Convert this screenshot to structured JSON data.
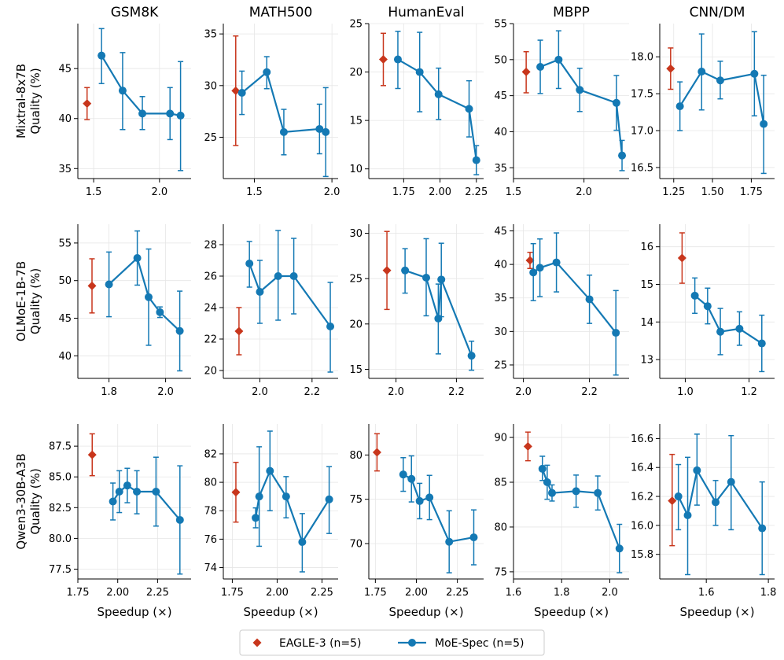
{
  "colors": {
    "eagle": "#c8361c",
    "moe": "#1479b4",
    "grid": "#e6e6e6",
    "axis": "#000000"
  },
  "row_labels": [
    "Mixtral-8x7B\nQuality (%)",
    "OLMoE-1B-7B\nQuality (%)",
    "Qwen3-30B-A3B\nQuality (%)"
  ],
  "col_titles": [
    "GSM8K",
    "MATH500",
    "HumanEval",
    "MBPP",
    "CNN/DM"
  ],
  "xlabel": "Speedup (×)",
  "legend": {
    "eagle_label": "EAGLE-3 (n=5)",
    "moe_label": "MoE-Spec (n=5)"
  },
  "chart_data": [
    {
      "type": "line",
      "model": "Mixtral-8x7B",
      "dataset": "GSM8K",
      "xlim": [
        1.38,
        2.24
      ],
      "ylim": [
        34,
        49.5
      ],
      "xticks": [
        1.5,
        2.0
      ],
      "xtick_labels": [
        "1.5",
        "2.0"
      ],
      "yticks": [
        35,
        40,
        45
      ],
      "ytick_labels": [
        "35",
        "40",
        "45"
      ],
      "eagle": {
        "x": 1.45,
        "y": 41.5,
        "lo": 39.9,
        "hi": 43.1
      },
      "moe": {
        "x": [
          1.56,
          1.72,
          1.87,
          2.08,
          2.16
        ],
        "y": [
          46.3,
          42.8,
          40.5,
          40.5,
          40.3
        ],
        "lo": [
          43.5,
          38.9,
          38.9,
          37.9,
          34.8
        ],
        "hi": [
          49.0,
          46.6,
          42.2,
          43.1,
          45.7
        ]
      }
    },
    {
      "type": "line",
      "model": "Mixtral-8x7B",
      "dataset": "MATH500",
      "xlim": [
        1.3,
        2.04
      ],
      "ylim": [
        21,
        36
      ],
      "xticks": [
        1.5,
        2.0
      ],
      "xtick_labels": [
        "1.5",
        "2.0"
      ],
      "yticks": [
        25,
        30,
        35
      ],
      "ytick_labels": [
        "25",
        "30",
        "35"
      ],
      "eagle": {
        "x": 1.38,
        "y": 29.5,
        "lo": 24.2,
        "hi": 34.8
      },
      "moe": {
        "x": [
          1.42,
          1.58,
          1.69,
          1.92,
          1.96
        ],
        "y": [
          29.3,
          31.3,
          25.5,
          25.8,
          25.5
        ],
        "lo": [
          27.2,
          29.7,
          23.3,
          23.4,
          21.2
        ],
        "hi": [
          31.4,
          32.8,
          27.7,
          28.2,
          29.8
        ]
      }
    },
    {
      "type": "line",
      "model": "Mixtral-8x7B",
      "dataset": "HumanEval",
      "xlim": [
        1.51,
        2.3
      ],
      "ylim": [
        9,
        25
      ],
      "xticks": [
        1.75,
        2.0,
        2.25
      ],
      "xtick_labels": [
        "1.75",
        "2.00",
        "2.25"
      ],
      "yticks": [
        10,
        15,
        20,
        25
      ],
      "ytick_labels": [
        "10",
        "15",
        "20",
        "25"
      ],
      "eagle": {
        "x": 1.61,
        "y": 21.3,
        "lo": 18.6,
        "hi": 24.0
      },
      "moe": {
        "x": [
          1.71,
          1.86,
          1.99,
          2.2,
          2.25
        ],
        "y": [
          21.3,
          20.0,
          17.7,
          16.2,
          10.9
        ],
        "lo": [
          18.3,
          15.9,
          15.1,
          13.3,
          9.4
        ],
        "hi": [
          24.2,
          24.1,
          20.4,
          19.1,
          12.4
        ]
      }
    },
    {
      "type": "line",
      "model": "Mixtral-8x7B",
      "dataset": "MBPP",
      "xlim": [
        1.5,
        2.32
      ],
      "ylim": [
        33.5,
        55
      ],
      "xticks": [
        1.5,
        2.0
      ],
      "xtick_labels": [
        "1.5",
        "2.0"
      ],
      "yticks": [
        35,
        40,
        45,
        50,
        55
      ],
      "ytick_labels": [
        "35",
        "40",
        "45",
        "50",
        "55"
      ],
      "eagle": {
        "x": 1.59,
        "y": 48.3,
        "lo": 45.4,
        "hi": 51.1
      },
      "moe": {
        "x": [
          1.69,
          1.82,
          1.97,
          2.23,
          2.27
        ],
        "y": [
          49.0,
          50.0,
          45.8,
          44.0,
          36.7
        ],
        "lo": [
          45.3,
          46.0,
          42.8,
          40.2,
          34.6
        ],
        "hi": [
          52.7,
          54.0,
          48.8,
          47.8,
          38.8
        ]
      }
    },
    {
      "type": "line",
      "model": "Mixtral-8x7B",
      "dataset": "CNN/DM",
      "xlim": [
        1.16,
        1.9
      ],
      "ylim": [
        16.35,
        18.45
      ],
      "xticks": [
        1.25,
        1.5,
        1.75
      ],
      "xtick_labels": [
        "1.25",
        "1.50",
        "1.75"
      ],
      "yticks": [
        16.5,
        17.0,
        17.5,
        18.0
      ],
      "ytick_labels": [
        "16.5",
        "17.0",
        "17.5",
        "18.0"
      ],
      "eagle": {
        "x": 1.23,
        "y": 17.84,
        "lo": 17.56,
        "hi": 18.12
      },
      "moe": {
        "x": [
          1.29,
          1.43,
          1.55,
          1.77,
          1.83
        ],
        "y": [
          17.33,
          17.8,
          17.68,
          17.77,
          17.09
        ],
        "lo": [
          17.0,
          17.28,
          17.43,
          17.2,
          16.42
        ],
        "hi": [
          17.66,
          18.31,
          17.94,
          18.34,
          17.75
        ]
      }
    },
    {
      "type": "line",
      "model": "OLMoE-1B-7B",
      "dataset": "GSM8K",
      "xlim": [
        1.69,
        2.09
      ],
      "ylim": [
        37,
        57.5
      ],
      "xticks": [
        1.8,
        2.0
      ],
      "xtick_labels": [
        "1.8",
        "2.0"
      ],
      "yticks": [
        40,
        45,
        50,
        55
      ],
      "ytick_labels": [
        "40",
        "45",
        "50",
        "55"
      ],
      "eagle": {
        "x": 1.74,
        "y": 49.3,
        "lo": 45.7,
        "hi": 52.9
      },
      "moe": {
        "x": [
          1.8,
          1.9,
          1.94,
          1.98,
          2.05
        ],
        "y": [
          49.5,
          53.0,
          47.8,
          45.8,
          43.3
        ],
        "lo": [
          45.2,
          49.4,
          41.4,
          45.1,
          38.0
        ],
        "hi": [
          53.8,
          56.6,
          54.2,
          46.5,
          48.6
        ]
      }
    },
    {
      "type": "line",
      "model": "OLMoE-1B-7B",
      "dataset": "MATH500",
      "xlim": [
        1.86,
        2.3
      ],
      "ylim": [
        19.5,
        29.3
      ],
      "xticks": [
        2.0,
        2.2
      ],
      "xtick_labels": [
        "2.0",
        "2.2"
      ],
      "yticks": [
        20,
        22,
        24,
        26,
        28
      ],
      "ytick_labels": [
        "20",
        "22",
        "24",
        "26",
        "28"
      ],
      "eagle": {
        "x": 1.92,
        "y": 22.5,
        "lo": 21.0,
        "hi": 24.0
      },
      "moe": {
        "x": [
          1.96,
          2.0,
          2.07,
          2.13,
          2.27
        ],
        "y": [
          26.8,
          25.0,
          26.0,
          26.0,
          22.8
        ],
        "lo": [
          25.3,
          23.0,
          23.2,
          23.6,
          19.9
        ],
        "hi": [
          28.2,
          27.0,
          28.9,
          28.4,
          25.6
        ]
      }
    },
    {
      "type": "line",
      "model": "OLMoE-1B-7B",
      "dataset": "HumanEval",
      "xlim": [
        1.91,
        2.29
      ],
      "ylim": [
        14,
        31
      ],
      "xticks": [
        2.0,
        2.2
      ],
      "xtick_labels": [
        "2.0",
        "2.2"
      ],
      "yticks": [
        15,
        20,
        25,
        30
      ],
      "ytick_labels": [
        "15",
        "20",
        "25",
        "30"
      ],
      "eagle": {
        "x": 1.97,
        "y": 25.9,
        "lo": 21.6,
        "hi": 30.2
      },
      "moe": {
        "x": [
          2.03,
          2.1,
          2.14,
          2.15,
          2.25
        ],
        "y": [
          25.9,
          25.1,
          20.6,
          24.9,
          16.5
        ],
        "lo": [
          23.4,
          20.9,
          16.7,
          20.8,
          14.9
        ],
        "hi": [
          28.3,
          29.4,
          24.4,
          28.9,
          18.1
        ]
      }
    },
    {
      "type": "line",
      "model": "OLMoE-1B-7B",
      "dataset": "MBPP",
      "xlim": [
        1.97,
        2.32
      ],
      "ylim": [
        23,
        46
      ],
      "xticks": [
        2.0,
        2.2
      ],
      "xtick_labels": [
        "2.0",
        "2.2"
      ],
      "yticks": [
        25,
        30,
        35,
        40,
        45
      ],
      "ytick_labels": [
        "25",
        "30",
        "35",
        "40",
        "45"
      ],
      "eagle": {
        "x": 2.02,
        "y": 40.6,
        "lo": 39.4,
        "hi": 41.8
      },
      "moe": {
        "x": [
          2.03,
          2.05,
          2.1,
          2.2,
          2.28
        ],
        "y": [
          38.8,
          39.5,
          40.3,
          34.8,
          29.8
        ],
        "lo": [
          34.6,
          35.2,
          35.9,
          31.2,
          23.5
        ],
        "hi": [
          43.1,
          43.8,
          44.7,
          38.4,
          36.1
        ]
      }
    },
    {
      "type": "line",
      "model": "OLMoE-1B-7B",
      "dataset": "CNN/DM",
      "xlim": [
        0.92,
        1.28
      ],
      "ylim": [
        12.5,
        16.6
      ],
      "xticks": [
        1.0,
        1.2
      ],
      "xtick_labels": [
        "1.0",
        "1.2"
      ],
      "yticks": [
        13,
        14,
        15,
        16
      ],
      "ytick_labels": [
        "13",
        "14",
        "15",
        "16"
      ],
      "eagle": {
        "x": 0.99,
        "y": 15.7,
        "lo": 15.03,
        "hi": 16.37
      },
      "moe": {
        "x": [
          1.03,
          1.07,
          1.11,
          1.17,
          1.24
        ],
        "y": [
          14.7,
          14.42,
          13.74,
          13.82,
          13.43
        ],
        "lo": [
          14.23,
          13.95,
          13.13,
          13.38,
          12.68
        ],
        "hi": [
          15.17,
          14.9,
          14.36,
          14.27,
          14.18
        ]
      }
    },
    {
      "type": "line",
      "model": "Qwen3-30B-A3B",
      "dataset": "GSM8K",
      "xlim": [
        1.75,
        2.46
      ],
      "ylim": [
        76.7,
        89.3
      ],
      "xticks": [
        1.75,
        2.0,
        2.25
      ],
      "xtick_labels": [
        "1.75",
        "2.00",
        "2.25"
      ],
      "yticks": [
        77.5,
        80.0,
        82.5,
        85.0,
        87.5
      ],
      "ytick_labels": [
        "77.5",
        "80.0",
        "82.5",
        "85.0",
        "87.5"
      ],
      "eagle": {
        "x": 1.84,
        "y": 86.8,
        "lo": 85.1,
        "hi": 88.5
      },
      "moe": {
        "x": [
          1.97,
          2.01,
          2.06,
          2.12,
          2.24,
          2.39
        ],
        "y": [
          83.0,
          83.8,
          84.3,
          83.8,
          83.8,
          81.5
        ],
        "lo": [
          81.5,
          82.1,
          82.9,
          82.0,
          81.0,
          77.1
        ],
        "hi": [
          84.5,
          85.5,
          85.7,
          85.5,
          86.6,
          85.9
        ]
      }
    },
    {
      "type": "line",
      "model": "Qwen3-30B-A3B",
      "dataset": "MATH500",
      "xlim": [
        1.7,
        2.34
      ],
      "ylim": [
        73.2,
        84.1
      ],
      "xticks": [
        1.75,
        2.0,
        2.25
      ],
      "xtick_labels": [
        "1.75",
        "2.00",
        "2.25"
      ],
      "yticks": [
        74,
        76,
        78,
        80,
        82
      ],
      "ytick_labels": [
        "74",
        "76",
        "78",
        "80",
        "82"
      ],
      "eagle": {
        "x": 1.77,
        "y": 79.3,
        "lo": 77.2,
        "hi": 81.4
      },
      "moe": {
        "x": [
          1.88,
          1.9,
          1.96,
          2.05,
          2.14,
          2.29
        ],
        "y": [
          77.5,
          79.0,
          80.8,
          79.0,
          75.8,
          78.8
        ],
        "lo": [
          76.8,
          75.5,
          78.0,
          77.5,
          73.7,
          76.4
        ],
        "hi": [
          78.2,
          82.5,
          83.6,
          80.4,
          77.8,
          81.1
        ]
      }
    },
    {
      "type": "line",
      "model": "Qwen3-30B-A3B",
      "dataset": "HumanEval",
      "xlim": [
        1.71,
        2.41
      ],
      "ylim": [
        66,
        83.5
      ],
      "xticks": [
        1.75,
        2.0,
        2.25
      ],
      "xtick_labels": [
        "1.75",
        "2.00",
        "2.25"
      ],
      "yticks": [
        70,
        75,
        80
      ],
      "ytick_labels": [
        "70",
        "75",
        "80"
      ],
      "eagle": {
        "x": 1.76,
        "y": 80.3,
        "lo": 78.2,
        "hi": 82.4
      },
      "moe": {
        "x": [
          1.92,
          1.97,
          2.02,
          2.08,
          2.2,
          2.35
        ],
        "y": [
          77.8,
          77.3,
          74.8,
          75.2,
          70.2,
          70.7
        ],
        "lo": [
          75.9,
          74.7,
          72.8,
          72.7,
          66.7,
          67.6
        ],
        "hi": [
          79.7,
          79.9,
          76.8,
          77.7,
          73.7,
          73.8
        ]
      }
    },
    {
      "type": "line",
      "model": "Qwen3-30B-A3B",
      "dataset": "MBPP",
      "xlim": [
        1.6,
        2.08
      ],
      "ylim": [
        74.2,
        91.5
      ],
      "xticks": [
        1.6,
        1.8,
        2.0
      ],
      "xtick_labels": [
        "1.6",
        "1.8",
        "2.0"
      ],
      "yticks": [
        75,
        80,
        85,
        90
      ],
      "ytick_labels": [
        "75",
        "80",
        "85",
        "90"
      ],
      "eagle": {
        "x": 1.66,
        "y": 89.0,
        "lo": 87.4,
        "hi": 90.6
      },
      "moe": {
        "x": [
          1.72,
          1.74,
          1.76,
          1.86,
          1.95,
          2.04
        ],
        "y": [
          86.5,
          85.0,
          83.8,
          84.0,
          83.8,
          77.6
        ],
        "lo": [
          85.2,
          83.1,
          82.9,
          82.2,
          81.9,
          74.9
        ],
        "hi": [
          87.9,
          86.9,
          84.7,
          85.8,
          85.7,
          80.3
        ]
      }
    },
    {
      "type": "line",
      "model": "Qwen3-30B-A3B",
      "dataset": "CNN/DM",
      "xlim": [
        1.45,
        1.82
      ],
      "ylim": [
        15.63,
        16.7
      ],
      "xticks": [
        1.6,
        1.8
      ],
      "xtick_labels": [
        "1.6",
        "1.8"
      ],
      "yticks": [
        15.8,
        16.0,
        16.2,
        16.4,
        16.6
      ],
      "ytick_labels": [
        "15.8",
        "16.0",
        "16.2",
        "16.4",
        "16.6"
      ],
      "eagle": {
        "x": 1.49,
        "y": 16.17,
        "lo": 15.86,
        "hi": 16.49
      },
      "moe": {
        "x": [
          1.51,
          1.54,
          1.57,
          1.63,
          1.68,
          1.78
        ],
        "y": [
          16.2,
          16.07,
          16.38,
          16.16,
          16.3,
          15.98
        ],
        "lo": [
          15.97,
          15.66,
          16.14,
          16.0,
          15.97,
          15.66
        ],
        "hi": [
          16.42,
          16.47,
          16.63,
          16.31,
          16.62,
          16.3
        ]
      }
    }
  ]
}
